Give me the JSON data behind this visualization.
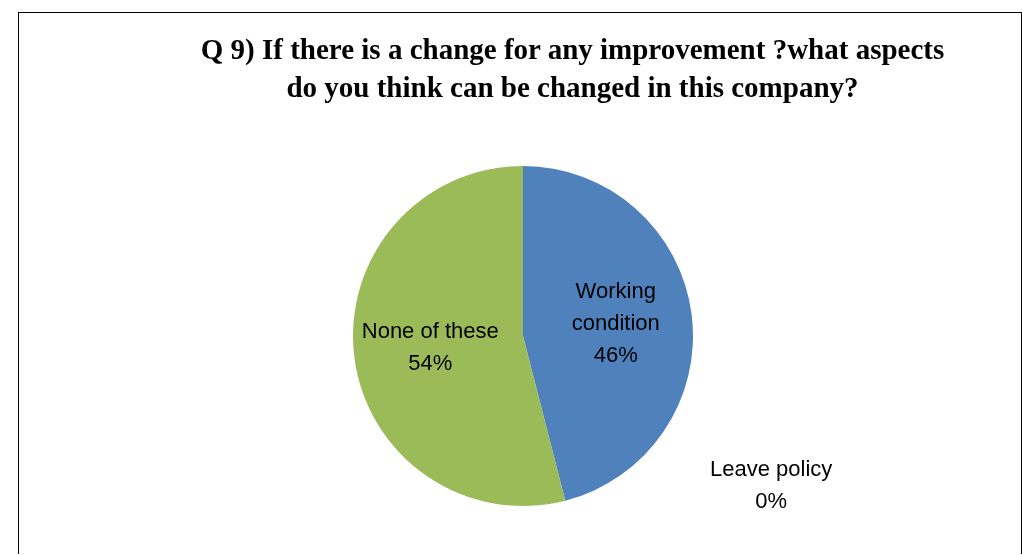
{
  "chart_data": {
    "type": "pie",
    "title": "Q 9) If there is a change for any improvement ?what aspects do you think can be changed in this company?",
    "categories": [
      "Working condition",
      "Leave policy",
      "None of these"
    ],
    "values": [
      46,
      0,
      54
    ],
    "colors": [
      "#4f81bd",
      "#c0504d",
      "#9bbb59"
    ],
    "value_labels": [
      "46%",
      "0%",
      "54%"
    ],
    "legend": false
  }
}
